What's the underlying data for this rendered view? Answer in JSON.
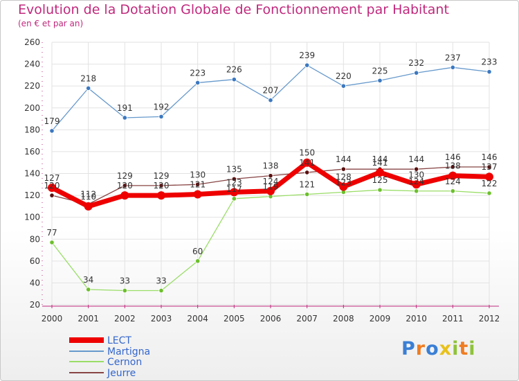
{
  "chart_data": {
    "type": "line",
    "title": "Evolution de la Dotation Globale de Fonctionnement par Habitant",
    "subtitle": "(en € et par an)",
    "categories": [
      "2000",
      "2001",
      "2002",
      "2003",
      "2004",
      "2005",
      "2006",
      "2007",
      "2008",
      "2009",
      "2010",
      "2011",
      "2012"
    ],
    "ylim": [
      20,
      260
    ],
    "yticks": [
      20,
      40,
      60,
      80,
      100,
      120,
      140,
      160,
      180,
      200,
      220,
      240,
      260
    ],
    "grid": true,
    "series": [
      {
        "name": "LECT",
        "color": "#ee0000",
        "values": [
          127,
          110,
          120,
          120,
          121,
          123,
          124,
          150,
          128,
          141,
          130,
          138,
          137
        ]
      },
      {
        "name": "Martigna",
        "color": "#6699cc",
        "values": [
          179,
          218,
          191,
          192,
          223,
          226,
          207,
          239,
          220,
          225,
          232,
          237,
          233
        ]
      },
      {
        "name": "Cernon",
        "color": "#99dd66",
        "values": [
          77,
          34,
          33,
          33,
          60,
          117,
          119,
          121,
          123,
          125,
          124,
          124,
          122
        ]
      },
      {
        "name": "Jeurre",
        "color": "#884444",
        "values": [
          120,
          112,
          129,
          129,
          130,
          135,
          138,
          141,
          144,
          144,
          144,
          146,
          146
        ]
      }
    ]
  },
  "logo": {
    "text": "Proxiti",
    "letters": [
      "P",
      "r",
      "o",
      "x",
      "i",
      "t",
      "i"
    ],
    "colors": [
      "#3a7fd5",
      "#ef7d22",
      "#3a7fd5",
      "#e8c11a",
      "#8fc33a",
      "#ef7d22",
      "#8fc33a"
    ]
  }
}
